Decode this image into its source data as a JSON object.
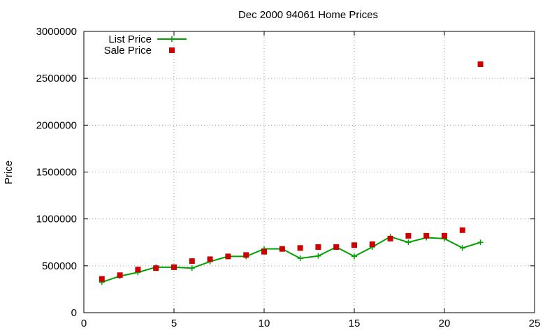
{
  "chart_data": {
    "type": "line",
    "title": "Dec 2000 94061 Home Prices",
    "xlabel": "",
    "ylabel": "Price",
    "xlim": [
      0,
      25
    ],
    "ylim": [
      0,
      3000000
    ],
    "xticks": [
      "0",
      "5",
      "10",
      "15",
      "20",
      "25"
    ],
    "yticks": [
      "0",
      "500000",
      "1000000",
      "1500000",
      "2000000",
      "2500000",
      "3000000"
    ],
    "grid": true,
    "legend_position": "top-left",
    "series": [
      {
        "name": "List Price",
        "style": "line-points",
        "color": "#00a000",
        "x": [
          1,
          2,
          3,
          4,
          5,
          6,
          7,
          8,
          9,
          10,
          11,
          12,
          13,
          14,
          15,
          16,
          17,
          18,
          19,
          20,
          21,
          22
        ],
        "y": [
          325000,
          390000,
          430000,
          485000,
          485000,
          475000,
          545000,
          600000,
          600000,
          680000,
          680000,
          580000,
          605000,
          700000,
          600000,
          700000,
          810000,
          750000,
          800000,
          790000,
          690000,
          750000
        ]
      },
      {
        "name": "Sale Price",
        "style": "points",
        "color": "#cc0000",
        "x": [
          1,
          2,
          3,
          4,
          5,
          6,
          7,
          8,
          9,
          10,
          11,
          12,
          13,
          14,
          15,
          16,
          17,
          18,
          19,
          20,
          21,
          22
        ],
        "y": [
          360000,
          400000,
          460000,
          475000,
          485000,
          550000,
          570000,
          600000,
          615000,
          650000,
          680000,
          690000,
          700000,
          700000,
          720000,
          730000,
          790000,
          820000,
          820000,
          820000,
          880000,
          2650000
        ]
      }
    ]
  }
}
